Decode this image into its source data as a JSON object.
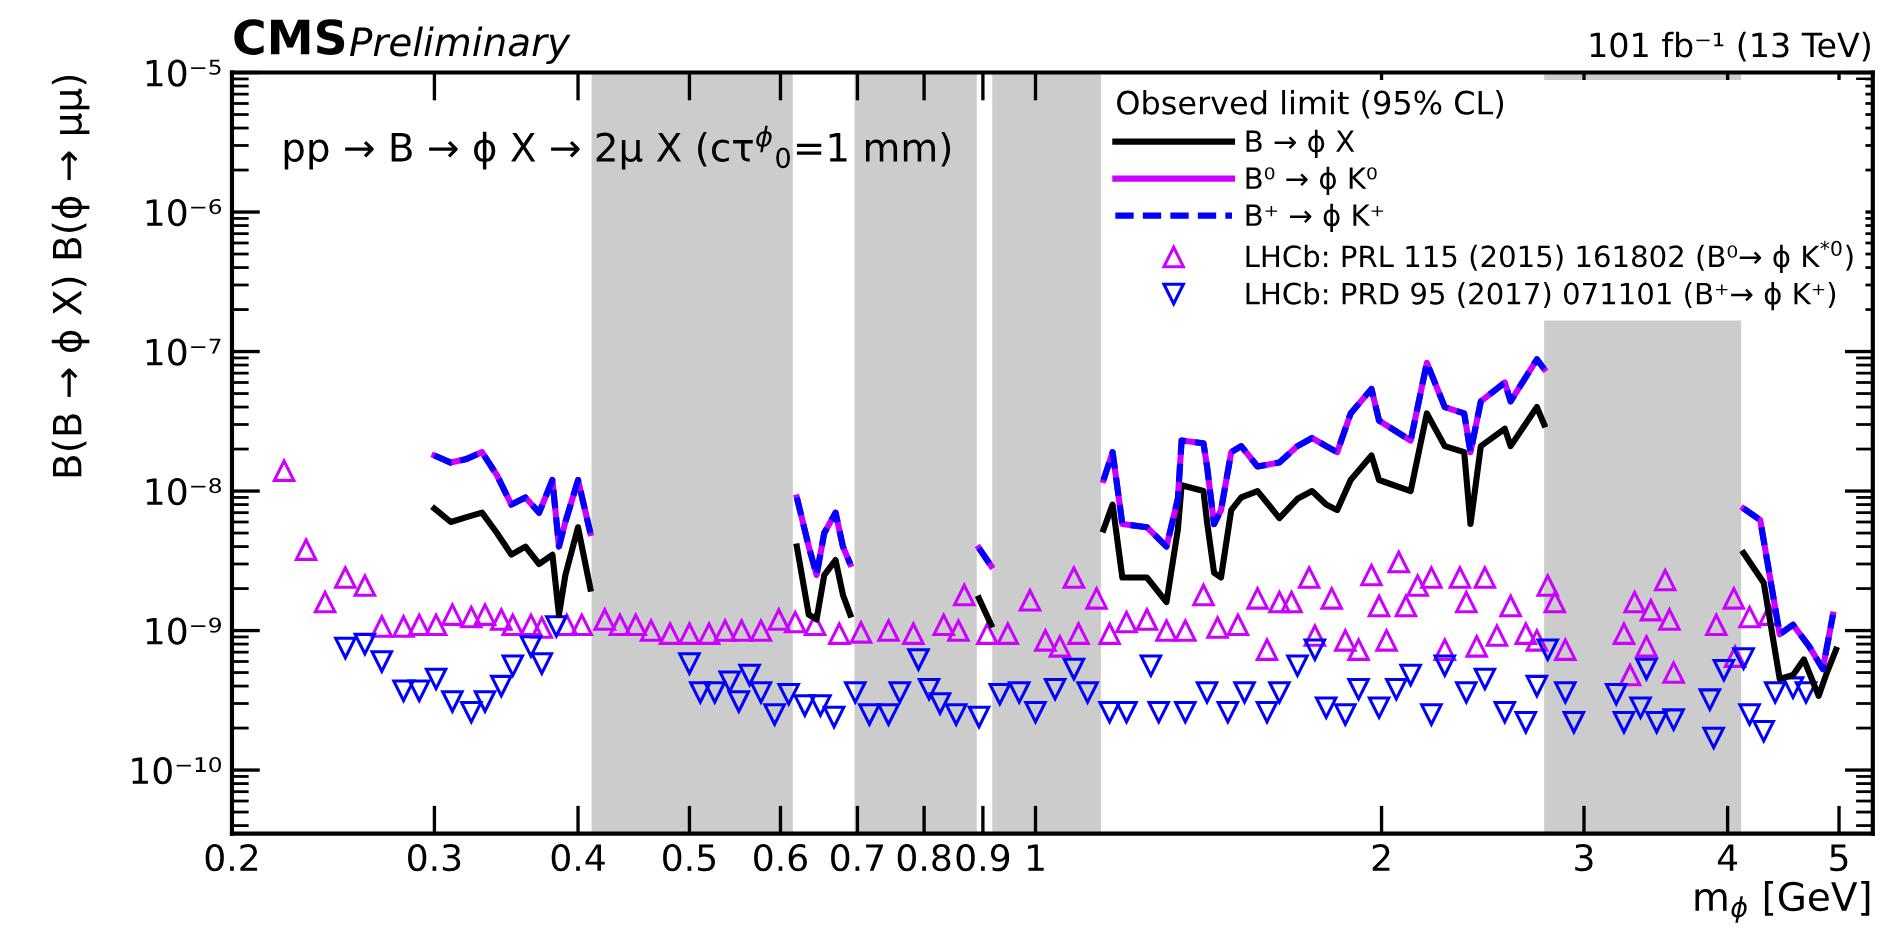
{
  "chart_data": {
    "type": "line",
    "title": "CMS",
    "subtitle": "Preliminary",
    "annotations": [
      "101 fb⁻¹ (13 TeV)",
      "pp → B → ϕ X → 2μ X (cτ$^{ϕ}$$_{0}$=1 mm)"
    ],
    "xlabel": "m$_{ϕ}$ [GeV]",
    "ylabel": "B(B → ϕ X) B(ϕ → μμ)",
    "legend_title": "Observed limit (95% CL)",
    "log": "xy",
    "xlim": [
      0.2,
      5.35
    ],
    "ylim": [
      3.5e-11,
      1e-05
    ],
    "xticks": [
      0.2,
      0.3,
      0.4,
      0.5,
      0.6,
      0.7,
      0.8,
      0.9,
      1,
      2,
      3,
      4,
      5
    ],
    "yticks": [
      {
        "value": 1e-10,
        "label": "10⁻¹⁰"
      },
      {
        "value": 1e-09,
        "label": "10⁻⁹"
      },
      {
        "value": 1e-08,
        "label": "10⁻⁸"
      },
      {
        "value": 1e-07,
        "label": "10⁻⁷"
      },
      {
        "value": 1e-06,
        "label": "10⁻⁶"
      },
      {
        "value": 1e-05,
        "label": "10⁻⁵"
      }
    ],
    "grid": false,
    "legend": "top right",
    "bands": [
      {
        "axis": "x",
        "from": 0.411,
        "to": 0.615,
        "color": "#cccccc"
      },
      {
        "axis": "x",
        "from": 0.696,
        "to": 0.889,
        "color": "#cccccc"
      },
      {
        "axis": "x",
        "from": 0.917,
        "to": 1.14,
        "color": "#cccccc"
      },
      {
        "axis": "x",
        "from": 2.77,
        "to": 4.11,
        "color": "#cccccc"
      }
    ],
    "series": [
      {
        "name": "B → ϕ X",
        "color": "#000000",
        "line_style": "solid",
        "marker": "none",
        "x": [
          0.3,
          0.31,
          0.32,
          0.33,
          0.34,
          0.35,
          0.36,
          0.37,
          0.38,
          0.385,
          0.39,
          0.4,
          0.41,
          0.5,
          0.62,
          0.635,
          0.645,
          0.655,
          0.67,
          0.68,
          0.69,
          0.8,
          0.893,
          0.915,
          1.0,
          1.146,
          1.167,
          1.19,
          1.25,
          1.3,
          1.33,
          1.34,
          1.4,
          1.41,
          1.43,
          1.45,
          1.48,
          1.51,
          1.56,
          1.63,
          1.69,
          1.74,
          1.79,
          1.83,
          1.88,
          1.96,
          1.99,
          2.12,
          2.19,
          2.27,
          2.36,
          2.39,
          2.44,
          2.56,
          2.59,
          2.73,
          2.77,
          3.5,
          4.13,
          4.3,
          4.44,
          4.56,
          4.66,
          4.8,
          4.88,
          4.97
        ],
        "values": [
          7.5e-09,
          6e-09,
          6.5e-09,
          7e-09,
          5e-09,
          3.5e-09,
          4e-09,
          3e-09,
          3.5e-09,
          1.3e-09,
          2.5e-09,
          5.5e-09,
          2e-09,
          null,
          4e-09,
          1.3e-09,
          1.2e-09,
          2.5e-09,
          3.2e-09,
          1.8e-09,
          1.3e-09,
          null,
          1.7e-09,
          1.1e-09,
          null,
          5.3e-09,
          8e-09,
          2.4e-09,
          2.4e-09,
          1.6e-09,
          5.3e-09,
          1.1e-08,
          1e-08,
          6e-09,
          2.6e-09,
          2.4e-09,
          7.3e-09,
          9e-09,
          1e-08,
          6.4e-09,
          8.8e-09,
          1e-08,
          8e-09,
          7.3e-09,
          1.2e-08,
          1.8e-08,
          1.2e-08,
          1e-08,
          3.6e-08,
          2.1e-08,
          1.9e-08,
          5.8e-09,
          2.1e-08,
          2.8e-08,
          2.1e-08,
          4e-08,
          3e-08,
          null,
          3.6e-09,
          2.2e-09,
          4.5e-10,
          4.8e-10,
          6.2e-10,
          3.4e-10,
          5e-10,
          7.3e-10
        ]
      },
      {
        "name": "B⁰ → ϕ K⁰",
        "color": "#cc00ff",
        "line_style": "solid",
        "marker": "none",
        "x": [
          0.3,
          0.31,
          0.32,
          0.33,
          0.34,
          0.35,
          0.36,
          0.37,
          0.38,
          0.385,
          0.39,
          0.4,
          0.41,
          0.5,
          0.62,
          0.635,
          0.645,
          0.655,
          0.67,
          0.68,
          0.69,
          0.8,
          0.893,
          0.915,
          1.0,
          1.146,
          1.167,
          1.19,
          1.25,
          1.3,
          1.33,
          1.34,
          1.4,
          1.41,
          1.43,
          1.45,
          1.48,
          1.51,
          1.56,
          1.63,
          1.69,
          1.74,
          1.79,
          1.83,
          1.88,
          1.96,
          1.99,
          2.12,
          2.19,
          2.27,
          2.36,
          2.39,
          2.44,
          2.56,
          2.59,
          2.73,
          2.77,
          3.5,
          4.13,
          4.27,
          4.44,
          4.56,
          4.71,
          4.84,
          4.94
        ],
        "values": [
          1.8e-08,
          1.6e-08,
          1.7e-08,
          1.9e-08,
          1.3e-08,
          8e-09,
          9e-09,
          7e-09,
          1.2e-08,
          4e-09,
          6e-09,
          1.2e-08,
          5e-09,
          null,
          9e-09,
          4e-09,
          2.5e-09,
          5e-09,
          7e-09,
          4e-09,
          3e-09,
          null,
          3.9e-09,
          2.9e-09,
          null,
          1.2e-08,
          1.9e-08,
          5.8e-09,
          5.5e-09,
          4e-09,
          8.8e-09,
          2.3e-08,
          2.2e-08,
          1.5e-08,
          5.8e-09,
          7.3e-09,
          1.9e-08,
          2.1e-08,
          1.5e-08,
          1.6e-08,
          2.1e-08,
          2.4e-08,
          2.1e-08,
          1.9e-08,
          3.6e-08,
          5.4e-08,
          3.2e-08,
          2.3e-08,
          8.3e-08,
          4e-08,
          3.6e-08,
          1.9e-08,
          4.4e-08,
          6e-08,
          4.4e-08,
          8.8e-08,
          7.5e-08,
          null,
          7.5e-09,
          6.2e-09,
          9.4e-10,
          1.1e-09,
          7.7e-10,
          5.3e-10,
          1.3e-09
        ]
      },
      {
        "name": "B⁺ → ϕ K⁺",
        "color": "#0000ff",
        "line_style": "dashed",
        "marker": "none",
        "x": [
          0.3,
          0.31,
          0.32,
          0.33,
          0.34,
          0.35,
          0.36,
          0.37,
          0.38,
          0.385,
          0.39,
          0.4,
          0.41,
          0.5,
          0.62,
          0.635,
          0.645,
          0.655,
          0.67,
          0.68,
          0.69,
          0.8,
          0.893,
          0.915,
          1.0,
          1.146,
          1.167,
          1.19,
          1.25,
          1.3,
          1.33,
          1.34,
          1.4,
          1.41,
          1.43,
          1.45,
          1.48,
          1.51,
          1.56,
          1.63,
          1.69,
          1.74,
          1.79,
          1.83,
          1.88,
          1.96,
          1.99,
          2.12,
          2.19,
          2.27,
          2.36,
          2.39,
          2.44,
          2.56,
          2.59,
          2.73,
          2.77,
          3.5,
          4.13,
          4.27,
          4.44,
          4.56,
          4.71,
          4.84,
          4.94
        ],
        "values": [
          1.8e-08,
          1.6e-08,
          1.7e-08,
          1.9e-08,
          1.3e-08,
          8e-09,
          9e-09,
          7e-09,
          1.2e-08,
          4e-09,
          6e-09,
          1.2e-08,
          5e-09,
          null,
          9e-09,
          4e-09,
          2.5e-09,
          5e-09,
          7e-09,
          4e-09,
          3e-09,
          null,
          3.9e-09,
          2.9e-09,
          null,
          1.2e-08,
          1.9e-08,
          5.8e-09,
          5.5e-09,
          4e-09,
          8.8e-09,
          2.3e-08,
          2.2e-08,
          1.5e-08,
          5.8e-09,
          7.3e-09,
          1.9e-08,
          2.1e-08,
          1.5e-08,
          1.6e-08,
          2.1e-08,
          2.4e-08,
          2.1e-08,
          1.9e-08,
          3.6e-08,
          5.4e-08,
          3.2e-08,
          2.3e-08,
          8.3e-08,
          4e-08,
          3.6e-08,
          1.9e-08,
          4.4e-08,
          6e-08,
          4.4e-08,
          8.8e-08,
          7.5e-08,
          null,
          7.5e-09,
          6.2e-09,
          9.4e-10,
          1.1e-09,
          7.7e-10,
          5.3e-10,
          1.3e-09
        ]
      },
      {
        "name": "LHCb: PRL 115 (2015) 161802 (B⁰→ ϕ K$^{*0}$)",
        "type": "scatter",
        "color": "#cc00ff",
        "marker": "triangle",
        "x": [
          0.222,
          0.232,
          0.241,
          0.251,
          0.261,
          0.27,
          0.282,
          0.291,
          0.301,
          0.311,
          0.323,
          0.332,
          0.343,
          0.351,
          0.364,
          0.372,
          0.391,
          0.403,
          0.422,
          0.435,
          0.449,
          0.463,
          0.481,
          0.5,
          0.52,
          0.537,
          0.555,
          0.577,
          0.598,
          0.618,
          0.643,
          0.675,
          0.705,
          0.745,
          0.783,
          0.832,
          0.857,
          0.867,
          0.908,
          0.946,
          0.989,
          1.02,
          1.05,
          1.08,
          1.09,
          1.13,
          1.16,
          1.2,
          1.25,
          1.3,
          1.35,
          1.4,
          1.44,
          1.5,
          1.56,
          1.59,
          1.63,
          1.67,
          1.73,
          1.75,
          1.81,
          1.86,
          1.91,
          1.96,
          1.99,
          2.02,
          2.07,
          2.1,
          2.15,
          2.21,
          2.27,
          2.34,
          2.37,
          2.42,
          2.46,
          2.52,
          2.59,
          2.67,
          2.73,
          2.79,
          2.83,
          2.89,
          3.25,
          3.29,
          3.32,
          3.4,
          3.43,
          3.53,
          3.56,
          3.59,
          3.91,
          4.05,
          4.06,
          4.18,
          4.35
        ],
        "values": [
          1.4e-08,
          3.8e-09,
          1.6e-09,
          2.4e-09,
          2.1e-09,
          1.07e-09,
          1.07e-09,
          1.1e-09,
          1.1e-09,
          1.3e-09,
          1.25e-09,
          1.3e-09,
          1.2e-09,
          1.1e-09,
          1.1e-09,
          1.05e-09,
          1.1e-09,
          1.1e-09,
          1.2e-09,
          1.1e-09,
          1.1e-09,
          1e-09,
          9.5e-10,
          9.5e-10,
          9.5e-10,
          1e-09,
          1e-09,
          1e-09,
          1.2e-09,
          1.15e-09,
          1.1e-09,
          9.5e-10,
          9.7e-10,
          1e-09,
          9.5e-10,
          1.1e-09,
          1e-09,
          1.8e-09,
          9.5e-10,
          9.5e-10,
          1.65e-09,
          8.5e-10,
          7.7e-10,
          2.4e-09,
          9.5e-10,
          1.7e-09,
          9.5e-10,
          1.15e-09,
          1.2e-09,
          1e-09,
          1e-09,
          1.8e-09,
          1.05e-09,
          1.1e-09,
          1.7e-09,
          7.3e-10,
          1.6e-09,
          1.6e-09,
          2.4e-09,
          9.2e-10,
          1.7e-09,
          8.5e-10,
          7.3e-10,
          2.5e-09,
          1.5e-09,
          8.5e-10,
          3.1e-09,
          1.5e-09,
          2.1e-09,
          2.4e-09,
          7.3e-10,
          2.4e-09,
          1.6e-09,
          7.7e-10,
          2.4e-09,
          9.2e-10,
          1.5e-09,
          9.5e-10,
          8.5e-10,
          2.1e-09,
          1.6e-09,
          7.3e-10,
          9.5e-10,
          4.8e-10,
          1.6e-09,
          7.7e-10,
          1.4e-09,
          2.3e-09,
          1.2e-09,
          5e-10,
          1.1e-09,
          1.7e-09,
          6.5e-10,
          1.25e-09,
          1.3e-09
        ]
      },
      {
        "name": "LHCb: PRD 95 (2017) 071101 (B⁺→ ϕ K⁺)",
        "type": "scatter",
        "color": "#0000ff",
        "marker": "triangle_down",
        "x": [
          0.251,
          0.261,
          0.27,
          0.282,
          0.291,
          0.301,
          0.311,
          0.323,
          0.332,
          0.343,
          0.351,
          0.364,
          0.372,
          0.383,
          0.5,
          0.511,
          0.526,
          0.542,
          0.552,
          0.564,
          0.577,
          0.593,
          0.61,
          0.63,
          0.65,
          0.668,
          0.697,
          0.717,
          0.745,
          0.762,
          0.791,
          0.808,
          0.826,
          0.853,
          0.893,
          0.931,
          0.968,
          1.0,
          1.04,
          1.08,
          1.11,
          1.16,
          1.2,
          1.26,
          1.28,
          1.35,
          1.41,
          1.47,
          1.52,
          1.59,
          1.63,
          1.69,
          1.75,
          1.79,
          1.86,
          1.91,
          1.99,
          2.06,
          2.12,
          2.21,
          2.27,
          2.37,
          2.46,
          2.56,
          2.67,
          2.73,
          2.79,
          2.89,
          2.94,
          3.2,
          3.25,
          3.36,
          3.4,
          3.47,
          3.59,
          3.86,
          3.89,
          3.97,
          4.13,
          4.18,
          4.3,
          4.4,
          4.56,
          4.68
        ],
        "values": [
          7.5e-10,
          8e-10,
          6e-10,
          3.7e-10,
          3.7e-10,
          4.5e-10,
          3.1e-10,
          2.6e-10,
          3.1e-10,
          4e-10,
          5.6e-10,
          7.7e-10,
          5.8e-10,
          1.07e-09,
          5.8e-10,
          3.6e-10,
          3.6e-10,
          4.3e-10,
          3.1e-10,
          4.8e-10,
          3.6e-10,
          2.5e-10,
          3.5e-10,
          2.9e-10,
          2.9e-10,
          2.4e-10,
          3.6e-10,
          2.5e-10,
          2.5e-10,
          3.6e-10,
          6.2e-10,
          3.8e-10,
          3e-10,
          2.5e-10,
          2.4e-10,
          3.5e-10,
          3.6e-10,
          2.6e-10,
          3.8e-10,
          5.3e-10,
          3.6e-10,
          2.6e-10,
          2.6e-10,
          5.6e-10,
          2.6e-10,
          2.6e-10,
          3.6e-10,
          2.6e-10,
          3.6e-10,
          2.6e-10,
          3.6e-10,
          5.6e-10,
          7.3e-10,
          2.8e-10,
          2.5e-10,
          3.8e-10,
          2.8e-10,
          3.8e-10,
          4.8e-10,
          2.5e-10,
          5.6e-10,
          3.6e-10,
          4.5e-10,
          2.6e-10,
          2.2e-10,
          4e-10,
          7.3e-10,
          3.6e-10,
          2.2e-10,
          3.5e-10,
          2.2e-10,
          2.8e-10,
          5.3e-10,
          2.2e-10,
          2.3e-10,
          3.2e-10,
          1.7e-10,
          5.2e-10,
          6.3e-10,
          2.5e-10,
          1.9e-10,
          3.6e-10,
          3.9e-10,
          3.6e-10
        ]
      }
    ]
  }
}
